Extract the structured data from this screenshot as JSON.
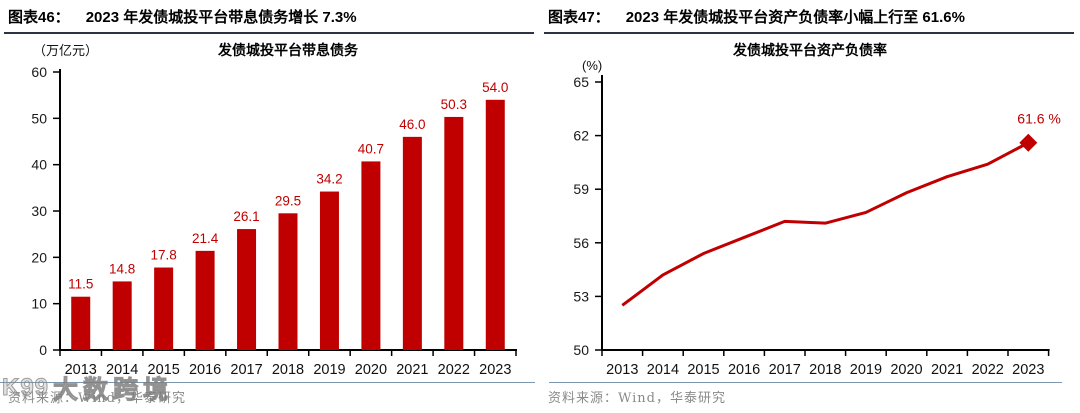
{
  "panels": {
    "left": {
      "figure_label": "图表46：",
      "figure_title": "2023 年发债城投平台带息债务增长 7.3%",
      "unit_label": "（万亿元）",
      "source": "资料来源：Wind，华泰研究",
      "watermark": {
        "logo_text": "K99",
        "brand_text": "大数跨境"
      }
    },
    "right": {
      "figure_label": "图表47：",
      "figure_title": "2023 年发债城投平台资产负债率小幅上行至 61.6%",
      "unit_label": "(%)",
      "source": "资料来源：Wind，华泰研究"
    }
  },
  "chart_data": [
    {
      "type": "bar",
      "title": "发债城投平台带息债务",
      "unit_label": "（万亿元）",
      "categories": [
        "2013",
        "2014",
        "2015",
        "2016",
        "2017",
        "2018",
        "2019",
        "2020",
        "2021",
        "2022",
        "2023"
      ],
      "values": [
        11.5,
        14.8,
        17.8,
        21.4,
        26.1,
        29.5,
        34.2,
        40.7,
        46.0,
        50.3,
        54.0
      ],
      "ylim": [
        0,
        60
      ],
      "yticks": [
        0,
        10,
        20,
        30,
        40,
        50,
        60
      ],
      "grid": false,
      "legend": "none",
      "bar_color": "#C00000",
      "label_color": "#C00000",
      "axis_color": "#000000",
      "tick_label_color": "#1a1a1a",
      "value_label_decimals": 1
    },
    {
      "type": "line",
      "title": "发债城投平台资产负债率",
      "unit_label": "(%)",
      "categories": [
        "2013",
        "2014",
        "2015",
        "2016",
        "2017",
        "2018",
        "2019",
        "2020",
        "2021",
        "2022",
        "2023"
      ],
      "values": [
        52.5,
        54.2,
        55.4,
        56.3,
        57.2,
        57.1,
        57.7,
        58.8,
        59.7,
        60.4,
        61.6
      ],
      "ylim": [
        50,
        65
      ],
      "yticks": [
        50,
        53,
        56,
        59,
        62,
        65
      ],
      "grid": false,
      "legend": "none",
      "line_color": "#C00000",
      "end_marker": "diamond",
      "end_label": "61.6 %",
      "end_label_color": "#C00000",
      "axis_color": "#000000",
      "tick_label_color": "#1a1a1a"
    }
  ]
}
